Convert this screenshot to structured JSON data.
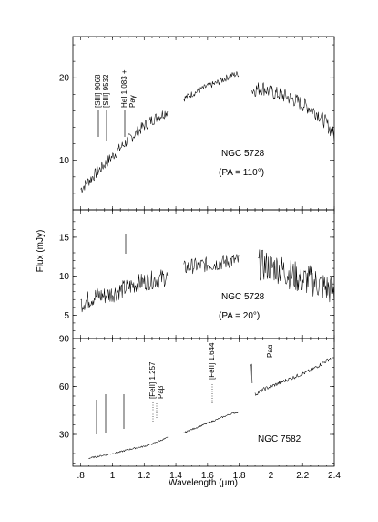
{
  "chart_data": {
    "type": "line",
    "shared_x": {
      "label": "Wavelength (μm)",
      "range": [
        0.75,
        2.4
      ],
      "ticks": [
        0.8,
        1.0,
        1.2,
        1.4,
        1.6,
        1.8,
        2.0,
        2.2,
        2.4
      ],
      "tick_labels": [
        ".8",
        "1",
        "1.2",
        "1.4",
        "1.6",
        "1.8",
        "2",
        "2.2",
        "2.4"
      ]
    },
    "shared_y_label": "Flux (mJy)",
    "panels": [
      {
        "galaxy": "NGC 5728",
        "pa_label": "(PA = 110°)",
        "ylim": [
          4,
          25
        ],
        "yticks": [
          10,
          20
        ],
        "ytick_labels": [
          "10",
          "20"
        ],
        "line_labels": [
          {
            "text": "[SIII] 9068",
            "x": 0.907
          },
          {
            "text": "[SIII] 9532",
            "x": 0.953
          },
          {
            "text": "HeI 1.083 +",
            "x": 1.083
          },
          {
            "text": "Paγ",
            "x": 1.094
          }
        ],
        "segments": [
          {
            "x": [
              0.8,
              0.85,
              0.9,
              0.95,
              1.0,
              1.05,
              1.1,
              1.15,
              1.2,
              1.25,
              1.3,
              1.35
            ],
            "y": [
              6.5,
              7.5,
              8.5,
              9.5,
              10.5,
              11.5,
              12.5,
              13.3,
              14.2,
              14.9,
              15.4,
              16.0
            ],
            "noise": 0.7
          },
          {
            "x": [
              1.45,
              1.5,
              1.55,
              1.6,
              1.65,
              1.7,
              1.75,
              1.8
            ],
            "y": [
              17.5,
              18.0,
              18.5,
              19.0,
              19.3,
              19.8,
              20.3,
              20.5
            ],
            "noise": 0.4
          },
          {
            "x": [
              1.88,
              1.95,
              2.0,
              2.05,
              2.1,
              2.15,
              2.2,
              2.25,
              2.3,
              2.35,
              2.4
            ],
            "y": [
              18.5,
              18.8,
              18.2,
              18.0,
              17.7,
              17.3,
              16.8,
              16.3,
              15.6,
              14.5,
              13.0
            ],
            "noise": 0.9
          }
        ]
      },
      {
        "galaxy": "NGC 5728",
        "pa_label": "(PA = 20°)",
        "ylim": [
          2,
          18.5
        ],
        "yticks": [
          5,
          10,
          15
        ],
        "ytick_labels": [
          "5",
          "10",
          "15"
        ],
        "segments": [
          {
            "x": [
              0.8,
              0.85,
              0.9,
              0.95,
              1.0,
              1.05,
              1.1,
              1.15,
              1.2,
              1.25,
              1.3,
              1.35
            ],
            "y": [
              6.5,
              7.0,
              7.5,
              7.5,
              7.8,
              8.2,
              8.6,
              9.0,
              9.3,
              9.5,
              9.7,
              9.9
            ],
            "noise": 1.2
          },
          {
            "x": [
              1.45,
              1.5,
              1.55,
              1.6,
              1.65,
              1.7,
              1.75,
              1.8
            ],
            "y": [
              11.0,
              11.3,
              11.4,
              11.5,
              11.6,
              11.8,
              12.0,
              12.0
            ],
            "noise": 1.0
          },
          {
            "x": [
              1.92,
              2.0,
              2.05,
              2.1,
              2.15,
              2.2,
              2.25,
              2.3,
              2.35,
              2.4
            ],
            "y": [
              11.5,
              11.2,
              11.0,
              10.5,
              10.0,
              9.5,
              9.5,
              9.0,
              8.5,
              8.0
            ],
            "noise": 2.0
          }
        ]
      },
      {
        "galaxy": "NGC 7582",
        "ylim": [
          10,
          90
        ],
        "yticks": [
          30,
          60,
          90
        ],
        "ytick_labels": [
          "30",
          "60",
          "90"
        ],
        "line_labels": [
          {
            "text": "[FeII] 1.257",
            "x": 1.257
          },
          {
            "text": "Paβ",
            "x": 1.282
          },
          {
            "text": "[FeII] 1.644",
            "x": 1.644
          },
          {
            "text": "Paα",
            "x": 1.875
          }
        ],
        "segments": [
          {
            "x": [
              0.85,
              0.9,
              0.95,
              1.0,
              1.05,
              1.1,
              1.15,
              1.2,
              1.25,
              1.3,
              1.35
            ],
            "y": [
              15.0,
              16.0,
              17.0,
              18.0,
              19.0,
              20.5,
              21.5,
              22.5,
              24.0,
              26.0,
              28.0
            ],
            "noise": 0.5
          },
          {
            "x": [
              1.45,
              1.5,
              1.55,
              1.6,
              1.65,
              1.7,
              1.75,
              1.8
            ],
            "y": [
              31.0,
              33.0,
              35.0,
              37.0,
              39.0,
              41.0,
              43.0,
              44.0
            ],
            "noise": 0.5
          },
          {
            "x": [
              1.9,
              1.95,
              2.0,
              2.05,
              2.1,
              2.15,
              2.2,
              2.25,
              2.3,
              2.35,
              2.38
            ],
            "y": [
              55.0,
              58.0,
              60.0,
              62.0,
              64.0,
              66.0,
              68.0,
              70.0,
              73.0,
              76.0,
              78.0
            ],
            "noise": 1.2
          }
        ]
      }
    ]
  }
}
